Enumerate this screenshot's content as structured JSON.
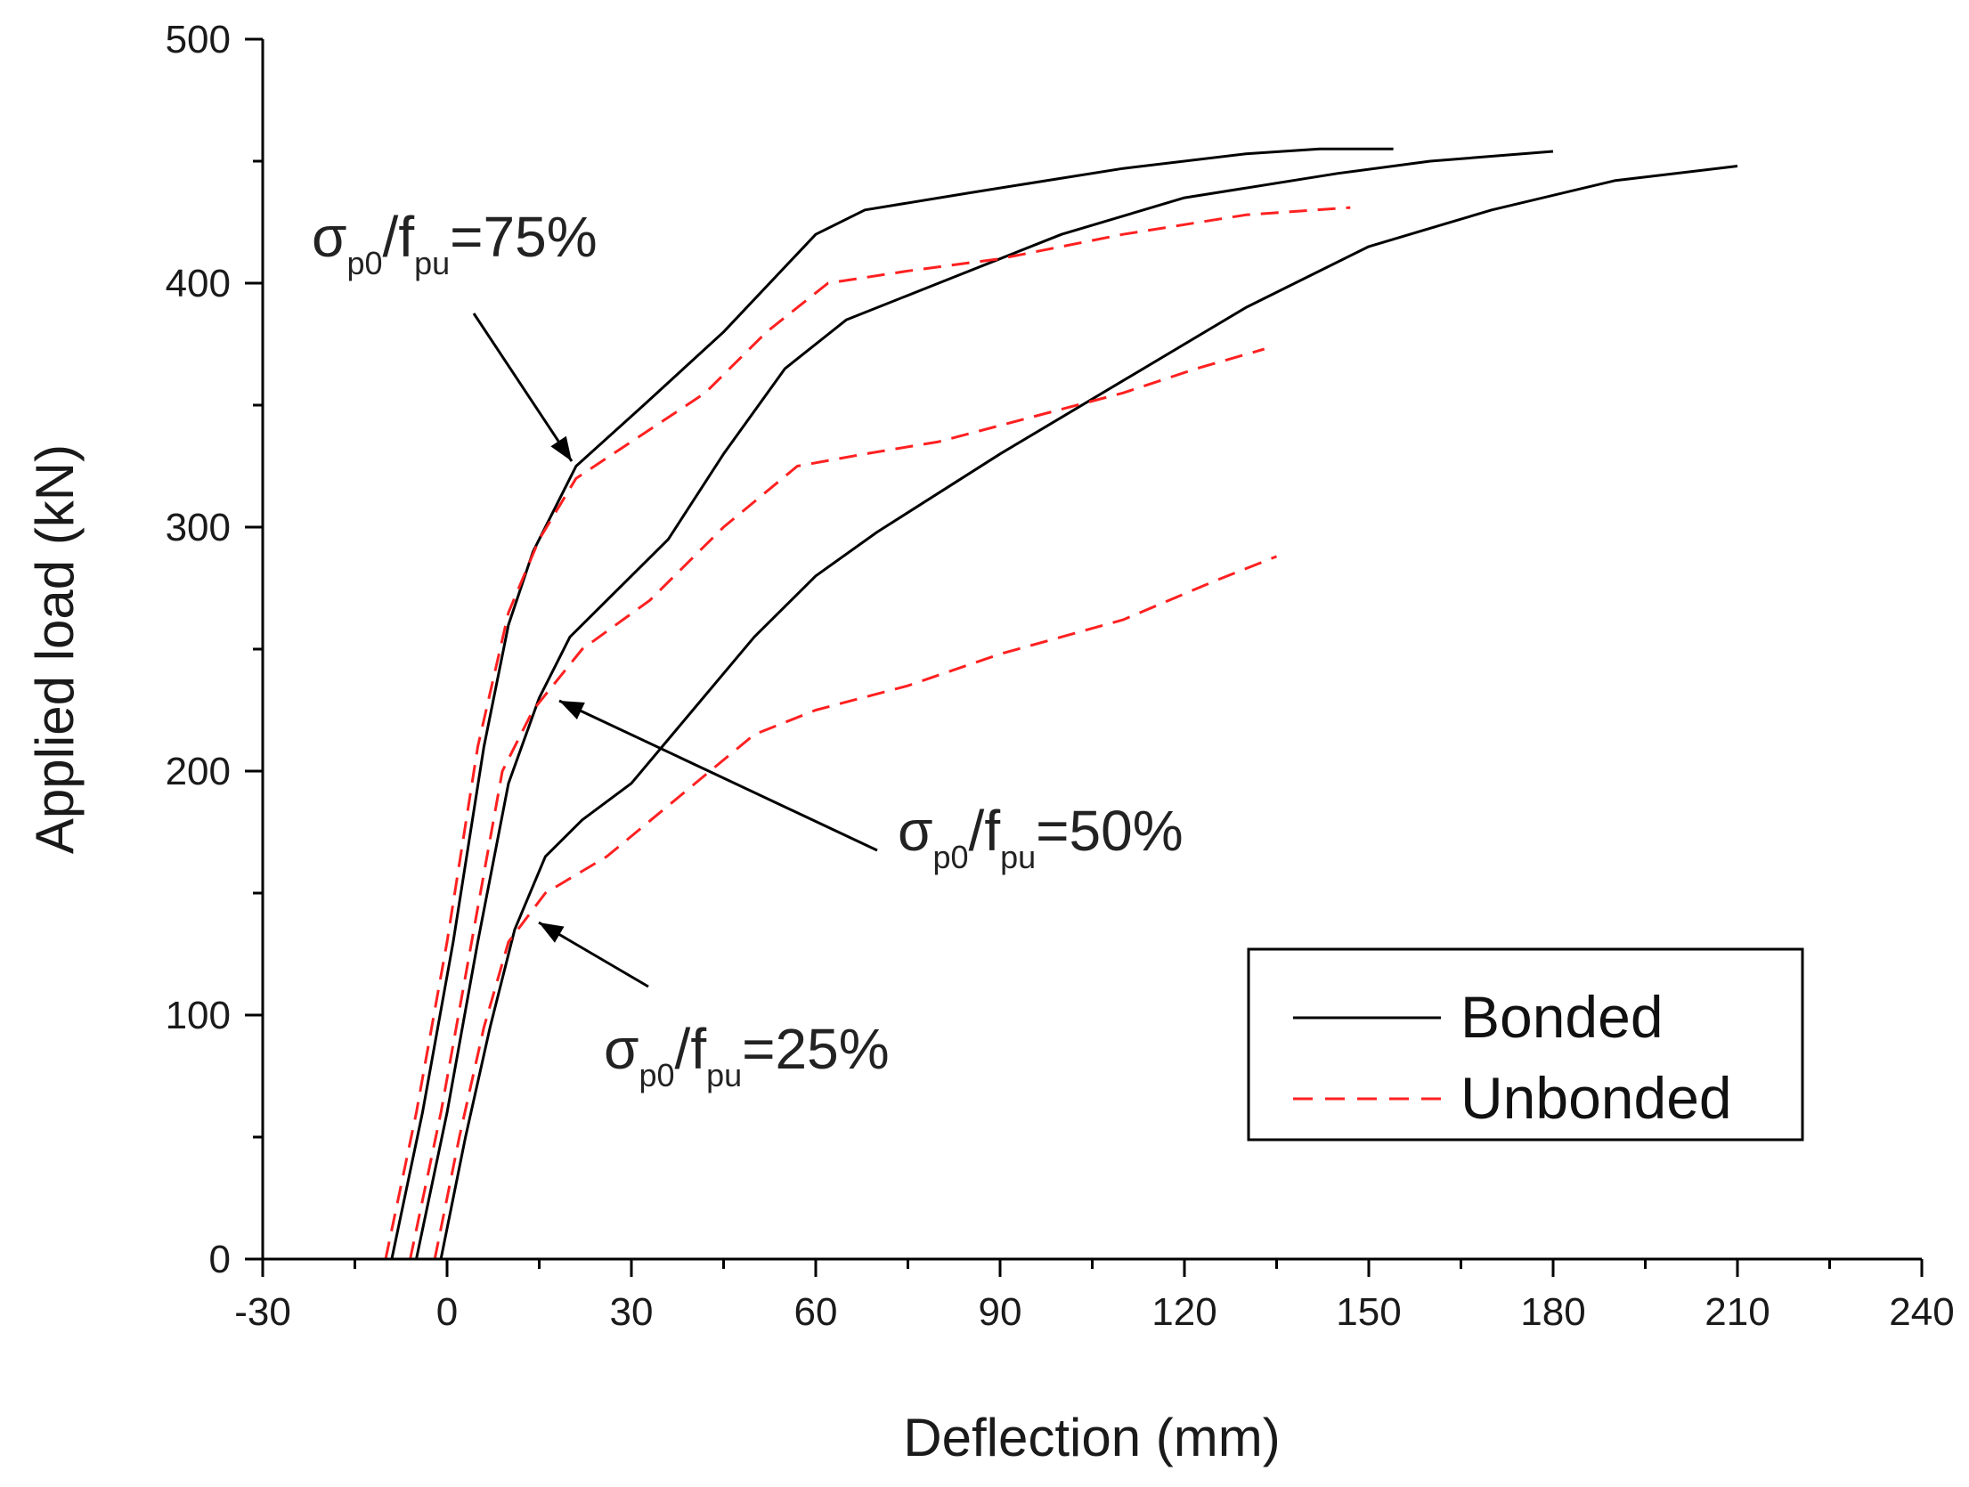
{
  "chart_data": {
    "type": "line",
    "title": "",
    "xlabel": "Deflection (mm)",
    "ylabel": "Applied load (kN)",
    "xlim": [
      -30,
      240
    ],
    "ylim": [
      0,
      500
    ],
    "xticks": [
      "-30",
      "0",
      "30",
      "60",
      "90",
      "120",
      "150",
      "180",
      "210",
      "240"
    ],
    "yticks": [
      "0",
      "100",
      "200",
      "300",
      "400",
      "500"
    ],
    "legend": {
      "placement": "lower-right",
      "entries": [
        {
          "label": "Bonded",
          "color": "#000000",
          "style": "solid"
        },
        {
          "label": "Unbonded",
          "color": "#ff2020",
          "style": "dashed"
        }
      ]
    },
    "series": [
      {
        "name": "Bonded σp0/fpu=75%",
        "group": "Bonded",
        "color": "#000000",
        "style": "solid",
        "points": [
          [
            -9,
            0
          ],
          [
            -4,
            60
          ],
          [
            1,
            130
          ],
          [
            6,
            210
          ],
          [
            10,
            260
          ],
          [
            14,
            290
          ],
          [
            21,
            325
          ],
          [
            32,
            350
          ],
          [
            45,
            380
          ],
          [
            60,
            420
          ],
          [
            68,
            430
          ],
          [
            85,
            437
          ],
          [
            110,
            447
          ],
          [
            130,
            453
          ],
          [
            142,
            455
          ],
          [
            154,
            455
          ]
        ]
      },
      {
        "name": "Bonded σp0/fpu=50%",
        "group": "Bonded",
        "color": "#000000",
        "style": "solid",
        "points": [
          [
            -5,
            0
          ],
          [
            0,
            60
          ],
          [
            5,
            130
          ],
          [
            10,
            195
          ],
          [
            15,
            230
          ],
          [
            20,
            255
          ],
          [
            28,
            275
          ],
          [
            36,
            295
          ],
          [
            45,
            330
          ],
          [
            55,
            365
          ],
          [
            65,
            385
          ],
          [
            80,
            400
          ],
          [
            100,
            420
          ],
          [
            120,
            435
          ],
          [
            145,
            445
          ],
          [
            160,
            450
          ],
          [
            180,
            454
          ]
        ]
      },
      {
        "name": "Bonded σp0/fpu=25%",
        "group": "Bonded",
        "color": "#000000",
        "style": "solid",
        "points": [
          [
            -1,
            0
          ],
          [
            3,
            50
          ],
          [
            7,
            95
          ],
          [
            11,
            135
          ],
          [
            16,
            165
          ],
          [
            22,
            180
          ],
          [
            30,
            195
          ],
          [
            40,
            225
          ],
          [
            50,
            255
          ],
          [
            60,
            280
          ],
          [
            70,
            298
          ],
          [
            90,
            330
          ],
          [
            110,
            360
          ],
          [
            130,
            390
          ],
          [
            150,
            415
          ],
          [
            170,
            430
          ],
          [
            190,
            442
          ],
          [
            210,
            448
          ]
        ]
      },
      {
        "name": "Unbonded σp0/fpu=75%",
        "group": "Unbonded",
        "color": "#ff2020",
        "style": "dashed",
        "points": [
          [
            -10,
            0
          ],
          [
            -5,
            60
          ],
          [
            0,
            130
          ],
          [
            5,
            210
          ],
          [
            10,
            265
          ],
          [
            15,
            295
          ],
          [
            21,
            320
          ],
          [
            30,
            335
          ],
          [
            42,
            355
          ],
          [
            52,
            380
          ],
          [
            62,
            400
          ],
          [
            75,
            405
          ],
          [
            90,
            410
          ],
          [
            110,
            420
          ],
          [
            130,
            428
          ],
          [
            147,
            431
          ]
        ]
      },
      {
        "name": "Unbonded σp0/fpu=50%",
        "group": "Unbonded",
        "color": "#ff2020",
        "style": "dashed",
        "points": [
          [
            -6,
            0
          ],
          [
            -1,
            60
          ],
          [
            4,
            130
          ],
          [
            9,
            200
          ],
          [
            14,
            225
          ],
          [
            22,
            250
          ],
          [
            33,
            270
          ],
          [
            45,
            300
          ],
          [
            57,
            325
          ],
          [
            68,
            330
          ],
          [
            80,
            335
          ],
          [
            95,
            345
          ],
          [
            110,
            355
          ],
          [
            122,
            365
          ],
          [
            133,
            373
          ]
        ]
      },
      {
        "name": "Unbonded σp0/fpu=25%",
        "group": "Unbonded",
        "color": "#ff2020",
        "style": "dashed",
        "points": [
          [
            -2,
            0
          ],
          [
            2,
            50
          ],
          [
            6,
            95
          ],
          [
            10,
            130
          ],
          [
            16,
            150
          ],
          [
            26,
            165
          ],
          [
            38,
            190
          ],
          [
            50,
            215
          ],
          [
            60,
            225
          ],
          [
            75,
            235
          ],
          [
            90,
            248
          ],
          [
            110,
            262
          ],
          [
            125,
            278
          ],
          [
            135,
            288
          ]
        ]
      }
    ],
    "annotations": [
      {
        "id": "ann-75",
        "sigma": "σ",
        "sub1": "p0",
        "slash": "/f",
        "sub2": "pu",
        "value": "=75%"
      },
      {
        "id": "ann-50",
        "sigma": "σ",
        "sub1": "p0",
        "slash": "/f",
        "sub2": "pu",
        "value": "=50%"
      },
      {
        "id": "ann-25",
        "sigma": "σ",
        "sub1": "p0",
        "slash": "/f",
        "sub2": "pu",
        "value": "=25%"
      }
    ]
  }
}
